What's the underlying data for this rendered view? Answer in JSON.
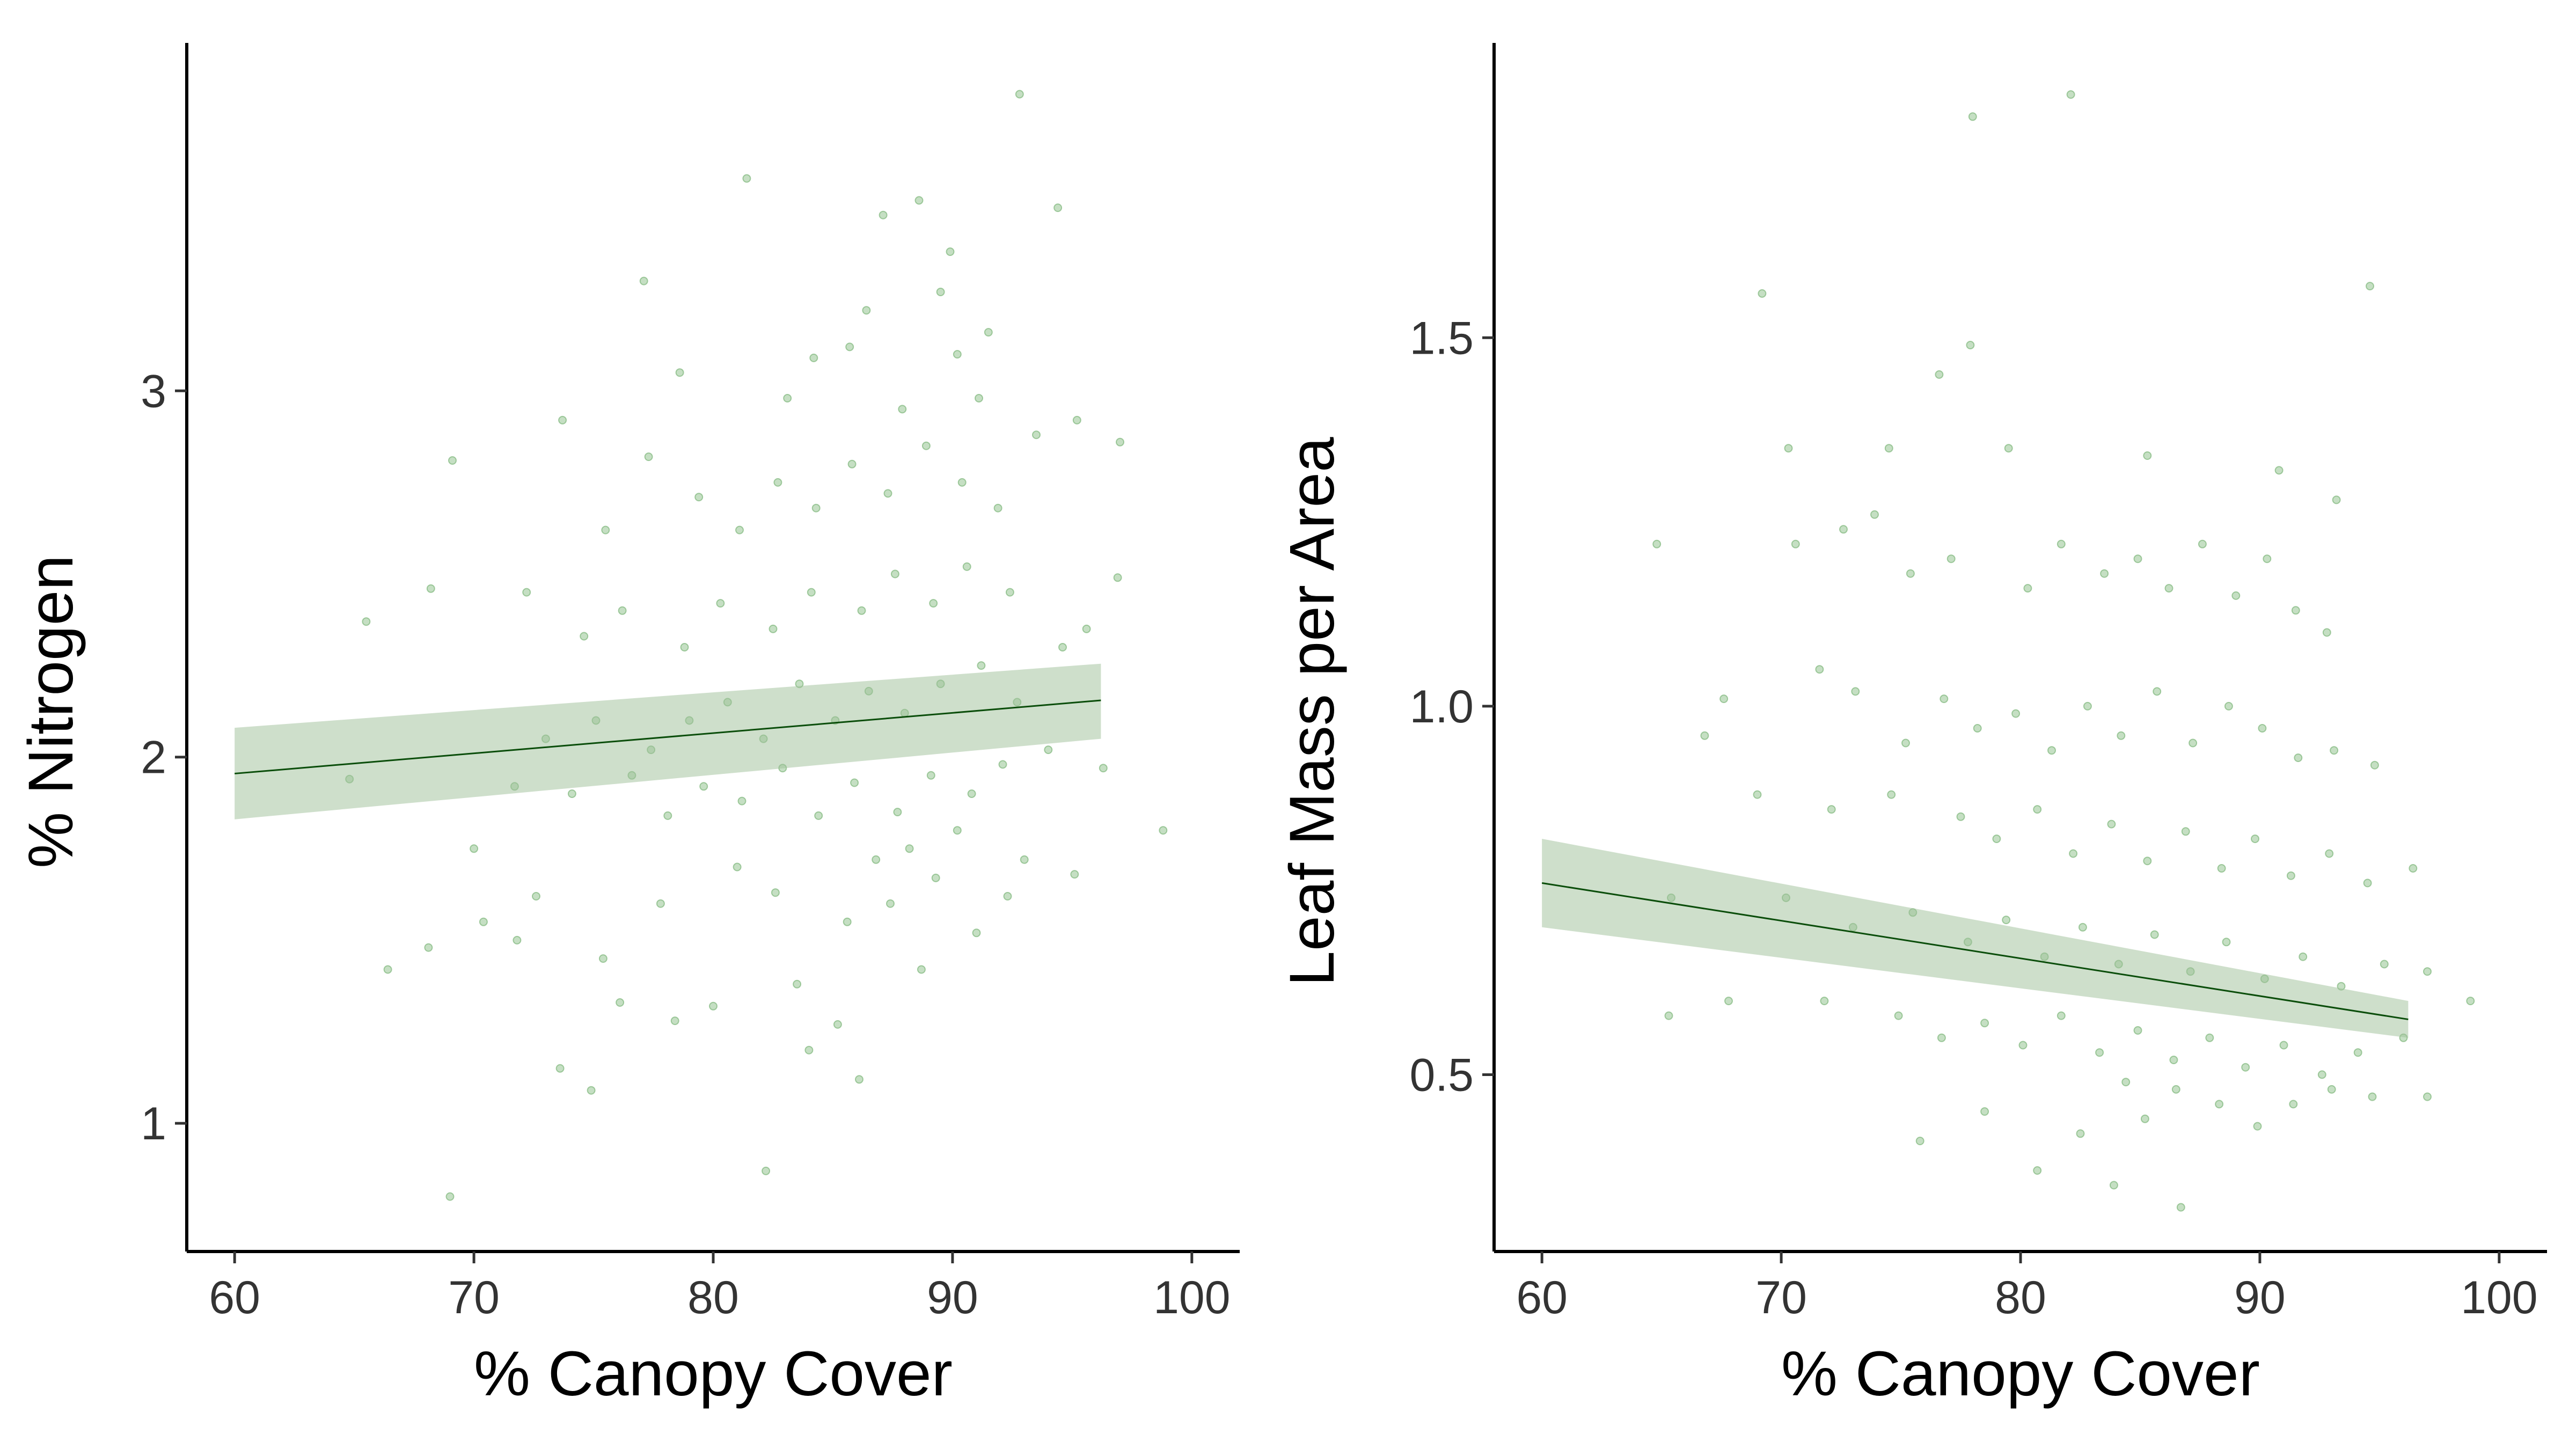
{
  "chart_data": [
    {
      "type": "scatter",
      "title": "",
      "xlabel": "% Canopy Cover",
      "ylabel": "% Nitrogen",
      "xlim": [
        58,
        102
      ],
      "ylim": [
        0.65,
        3.95
      ],
      "xticks": [
        60,
        70,
        80,
        90,
        100
      ],
      "yticks": [
        1,
        2,
        3
      ],
      "xtick_labels": [
        "60",
        "70",
        "80",
        "90",
        "100"
      ],
      "ytick_labels": [
        "1",
        "2",
        "3"
      ],
      "grid": false,
      "point_color": "#4a9a45",
      "fit": {
        "x": [
          60,
          96.2
        ],
        "y": [
          1.955,
          2.155
        ],
        "ci_lower": [
          1.83,
          2.05
        ],
        "ci_upper": [
          2.08,
          2.255
        ],
        "line_color": "#0a4d0a",
        "band_color": "#9dbf97"
      },
      "points": [
        [
          69,
          0.8
        ],
        [
          82.2,
          0.87
        ],
        [
          86.1,
          1.12
        ],
        [
          73.6,
          1.15
        ],
        [
          74.9,
          1.09
        ],
        [
          66.4,
          1.42
        ],
        [
          68.1,
          1.48
        ],
        [
          84,
          1.2
        ],
        [
          85.2,
          1.27
        ],
        [
          78.4,
          1.28
        ],
        [
          80,
          1.32
        ],
        [
          76.1,
          1.33
        ],
        [
          71.8,
          1.5
        ],
        [
          70.4,
          1.55
        ],
        [
          75.4,
          1.45
        ],
        [
          83.5,
          1.38
        ],
        [
          88.7,
          1.42
        ],
        [
          91,
          1.52
        ],
        [
          92.3,
          1.62
        ],
        [
          87.4,
          1.6
        ],
        [
          89.3,
          1.67
        ],
        [
          70,
          1.75
        ],
        [
          72.6,
          1.62
        ],
        [
          77.8,
          1.6
        ],
        [
          81,
          1.7
        ],
        [
          82.6,
          1.63
        ],
        [
          85.6,
          1.55
        ],
        [
          86.8,
          1.72
        ],
        [
          88.2,
          1.75
        ],
        [
          90.2,
          1.8
        ],
        [
          93,
          1.72
        ],
        [
          95.1,
          1.68
        ],
        [
          96.3,
          1.97
        ],
        [
          98.8,
          1.8
        ],
        [
          64.8,
          1.94
        ],
        [
          71.7,
          1.92
        ],
        [
          74.1,
          1.9
        ],
        [
          76.6,
          1.95
        ],
        [
          78.1,
          1.84
        ],
        [
          79.6,
          1.92
        ],
        [
          81.2,
          1.88
        ],
        [
          82.9,
          1.97
        ],
        [
          84.4,
          1.84
        ],
        [
          85.9,
          1.93
        ],
        [
          87.7,
          1.85
        ],
        [
          89.1,
          1.95
        ],
        [
          90.8,
          1.9
        ],
        [
          92.1,
          1.98
        ],
        [
          94,
          2.02
        ],
        [
          73,
          2.05
        ],
        [
          75.1,
          2.1
        ],
        [
          77.4,
          2.02
        ],
        [
          79,
          2.1
        ],
        [
          80.6,
          2.15
        ],
        [
          82.1,
          2.05
        ],
        [
          83.6,
          2.2
        ],
        [
          85.1,
          2.1
        ],
        [
          86.5,
          2.18
        ],
        [
          88,
          2.12
        ],
        [
          89.5,
          2.2
        ],
        [
          91.2,
          2.25
        ],
        [
          92.7,
          2.15
        ],
        [
          94.6,
          2.3
        ],
        [
          65.5,
          2.37
        ],
        [
          68.2,
          2.46
        ],
        [
          72.2,
          2.45
        ],
        [
          74.6,
          2.33
        ],
        [
          76.2,
          2.4
        ],
        [
          78.8,
          2.3
        ],
        [
          80.3,
          2.42
        ],
        [
          82.5,
          2.35
        ],
        [
          84.1,
          2.45
        ],
        [
          86.2,
          2.4
        ],
        [
          87.6,
          2.5
        ],
        [
          89.2,
          2.42
        ],
        [
          90.6,
          2.52
        ],
        [
          92.4,
          2.45
        ],
        [
          95.6,
          2.35
        ],
        [
          96.9,
          2.49
        ],
        [
          69.1,
          2.81
        ],
        [
          73.7,
          2.92
        ],
        [
          75.5,
          2.62
        ],
        [
          77.3,
          2.82
        ],
        [
          79.4,
          2.71
        ],
        [
          81.1,
          2.62
        ],
        [
          82.7,
          2.75
        ],
        [
          84.3,
          2.68
        ],
        [
          85.8,
          2.8
        ],
        [
          87.3,
          2.72
        ],
        [
          88.9,
          2.85
        ],
        [
          90.4,
          2.75
        ],
        [
          91.9,
          2.68
        ],
        [
          93.5,
          2.88
        ],
        [
          95.2,
          2.92
        ],
        [
          97,
          2.86
        ],
        [
          77.1,
          3.3
        ],
        [
          81.4,
          3.58
        ],
        [
          84.2,
          3.09
        ],
        [
          85.7,
          3.12
        ],
        [
          87.1,
          3.48
        ],
        [
          88.6,
          3.52
        ],
        [
          89.5,
          3.27
        ],
        [
          90.2,
          3.1
        ],
        [
          91.5,
          3.16
        ],
        [
          92.8,
          3.81
        ],
        [
          94.4,
          3.5
        ],
        [
          86.4,
          3.22
        ],
        [
          89.9,
          3.38
        ],
        [
          78.6,
          3.05
        ],
        [
          83.1,
          2.98
        ],
        [
          87.9,
          2.95
        ],
        [
          91.1,
          2.98
        ]
      ]
    },
    {
      "type": "scatter",
      "title": "",
      "xlabel": "% Canopy Cover",
      "ylabel": "Leaf Mass per Area",
      "xlim": [
        58,
        102
      ],
      "ylim": [
        0.26,
        1.9
      ],
      "xticks": [
        60,
        70,
        80,
        90,
        100
      ],
      "yticks": [
        0.5,
        1.0,
        1.5
      ],
      "xtick_labels": [
        "60",
        "70",
        "80",
        "90",
        "100"
      ],
      "ytick_labels": [
        "0.5",
        "1.0",
        "1.5"
      ],
      "grid": false,
      "point_color": "#4a9a45",
      "fit": {
        "x": [
          60,
          96.2
        ],
        "y": [
          0.76,
          0.575
        ],
        "ci_lower": [
          0.7,
          0.55
        ],
        "ci_upper": [
          0.82,
          0.6
        ],
        "line_color": "#0a4d0a",
        "band_color": "#9dbf97"
      },
      "points": [
        [
          78,
          1.8
        ],
        [
          82.1,
          1.83
        ],
        [
          94.6,
          1.57
        ],
        [
          69.2,
          1.56
        ],
        [
          77.9,
          1.49
        ],
        [
          76.6,
          1.45
        ],
        [
          70.3,
          1.35
        ],
        [
          74.5,
          1.35
        ],
        [
          79.5,
          1.35
        ],
        [
          85.3,
          1.34
        ],
        [
          90.8,
          1.32
        ],
        [
          93.2,
          1.28
        ],
        [
          64.8,
          1.22
        ],
        [
          70.6,
          1.22
        ],
        [
          72.6,
          1.24
        ],
        [
          73.9,
          1.26
        ],
        [
          75.4,
          1.18
        ],
        [
          77.1,
          1.2
        ],
        [
          80.3,
          1.16
        ],
        [
          81.7,
          1.22
        ],
        [
          83.5,
          1.18
        ],
        [
          84.9,
          1.2
        ],
        [
          86.2,
          1.16
        ],
        [
          87.6,
          1.22
        ],
        [
          89,
          1.15
        ],
        [
          90.3,
          1.2
        ],
        [
          91.5,
          1.13
        ],
        [
          92.8,
          1.1
        ],
        [
          67.6,
          1.01
        ],
        [
          71.6,
          1.05
        ],
        [
          73.1,
          1.02
        ],
        [
          75.2,
          0.95
        ],
        [
          76.8,
          1.01
        ],
        [
          78.2,
          0.97
        ],
        [
          79.8,
          0.99
        ],
        [
          81.3,
          0.94
        ],
        [
          82.8,
          1
        ],
        [
          84.2,
          0.96
        ],
        [
          85.7,
          1.02
        ],
        [
          87.2,
          0.95
        ],
        [
          88.7,
          1
        ],
        [
          90.1,
          0.97
        ],
        [
          91.6,
          0.93
        ],
        [
          93.1,
          0.94
        ],
        [
          94.8,
          0.92
        ],
        [
          66.8,
          0.96
        ],
        [
          69,
          0.88
        ],
        [
          72.1,
          0.86
        ],
        [
          74.6,
          0.88
        ],
        [
          77.5,
          0.85
        ],
        [
          79,
          0.82
        ],
        [
          80.7,
          0.86
        ],
        [
          82.2,
          0.8
        ],
        [
          83.8,
          0.84
        ],
        [
          85.3,
          0.79
        ],
        [
          86.9,
          0.83
        ],
        [
          88.4,
          0.78
        ],
        [
          89.8,
          0.82
        ],
        [
          91.3,
          0.77
        ],
        [
          92.9,
          0.8
        ],
        [
          94.5,
          0.76
        ],
        [
          96.4,
          0.78
        ],
        [
          65.4,
          0.74
        ],
        [
          70.2,
          0.74
        ],
        [
          73,
          0.7
        ],
        [
          75.5,
          0.72
        ],
        [
          77.8,
          0.68
        ],
        [
          79.4,
          0.71
        ],
        [
          81,
          0.66
        ],
        [
          82.6,
          0.7
        ],
        [
          84.1,
          0.65
        ],
        [
          85.6,
          0.69
        ],
        [
          87.1,
          0.64
        ],
        [
          88.6,
          0.68
        ],
        [
          90.2,
          0.63
        ],
        [
          91.8,
          0.66
        ],
        [
          93.4,
          0.62
        ],
        [
          95.2,
          0.65
        ],
        [
          97,
          0.64
        ],
        [
          67.8,
          0.6
        ],
        [
          71.8,
          0.6
        ],
        [
          74.9,
          0.58
        ],
        [
          76.7,
          0.55
        ],
        [
          78.5,
          0.57
        ],
        [
          80.1,
          0.54
        ],
        [
          81.7,
          0.58
        ],
        [
          83.3,
          0.53
        ],
        [
          84.9,
          0.56
        ],
        [
          86.4,
          0.52
        ],
        [
          87.9,
          0.55
        ],
        [
          89.4,
          0.51
        ],
        [
          91,
          0.54
        ],
        [
          92.6,
          0.5
        ],
        [
          94.1,
          0.53
        ],
        [
          96,
          0.55
        ],
        [
          98.8,
          0.6
        ],
        [
          65.3,
          0.58
        ],
        [
          75.8,
          0.41
        ],
        [
          78.5,
          0.45
        ],
        [
          80.7,
          0.37
        ],
        [
          82.5,
          0.42
        ],
        [
          83.9,
          0.35
        ],
        [
          85.2,
          0.44
        ],
        [
          86.7,
          0.32
        ],
        [
          88.3,
          0.46
        ],
        [
          89.9,
          0.43
        ],
        [
          91.4,
          0.46
        ],
        [
          93,
          0.48
        ],
        [
          94.7,
          0.47
        ],
        [
          97,
          0.47
        ],
        [
          86.5,
          0.48
        ],
        [
          84.4,
          0.49
        ]
      ]
    }
  ]
}
